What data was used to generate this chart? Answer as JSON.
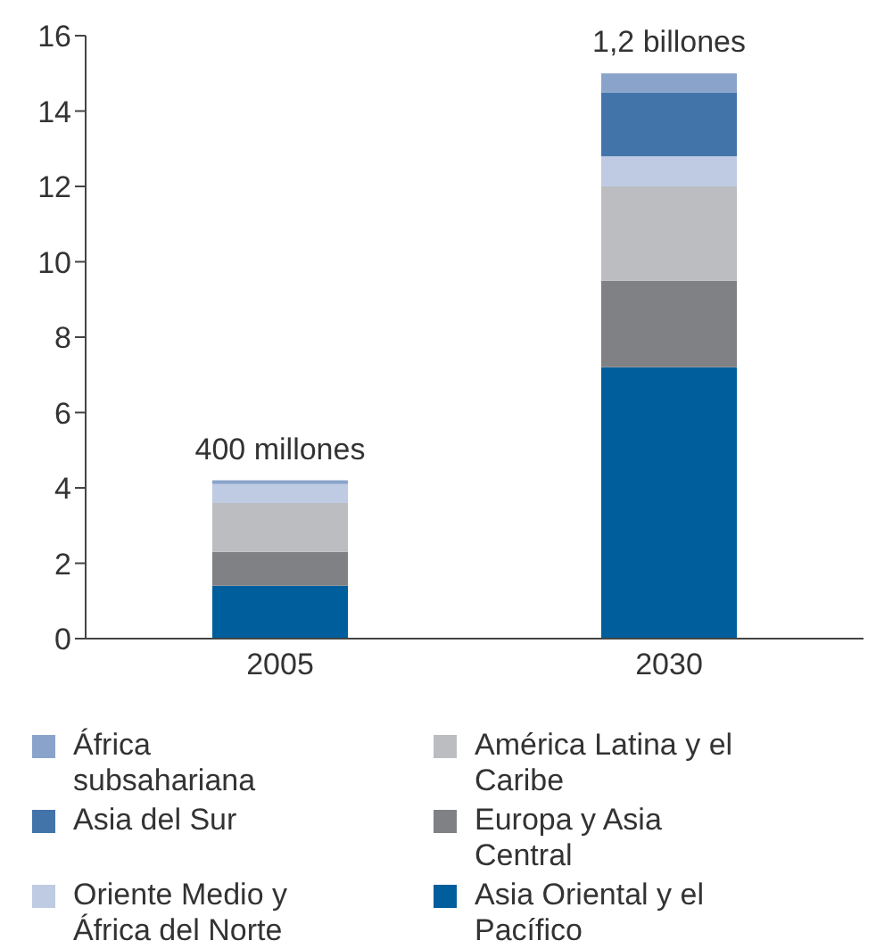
{
  "chart_data": {
    "type": "bar",
    "stacked": true,
    "categories": [
      "2005",
      "2030"
    ],
    "series": [
      {
        "name": "Asia Oriental y el Pacífico",
        "color": "#005e9c",
        "values": [
          1.4,
          7.2
        ]
      },
      {
        "name": "Europa y Asia Central",
        "color": "#808184",
        "values": [
          0.9,
          2.3
        ]
      },
      {
        "name": "América Latina y el Caribe",
        "color": "#bcbdc1",
        "values": [
          1.3,
          2.5
        ]
      },
      {
        "name": "Oriente Medio y África del Norte",
        "color": "#bfcbe3",
        "values": [
          0.5,
          0.8
        ]
      },
      {
        "name": "Asia del Sur",
        "color": "#4274aa",
        "values": [
          0,
          1.7
        ]
      },
      {
        "name": "África subsahariana",
        "color": "#8aa3cb",
        "values": [
          0.1,
          0.5
        ]
      }
    ],
    "ylim": [
      0,
      16
    ],
    "yticks": [
      0,
      2,
      4,
      6,
      8,
      10,
      12,
      14,
      16
    ],
    "grid": false,
    "legend": "bottom",
    "annotations": [
      {
        "text": "400 millones",
        "x": "2005",
        "y": 4.2
      },
      {
        "text": "1,2 billones",
        "x": "2030",
        "y": 15
      }
    ]
  }
}
